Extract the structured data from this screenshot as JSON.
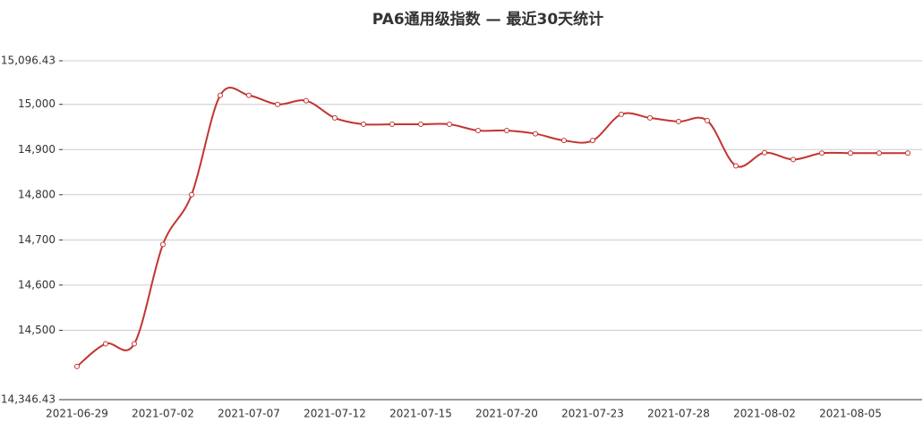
{
  "chart_data": {
    "type": "line",
    "title": "PA6通用级指数   —   最近30天统计",
    "categories": [
      "2021-06-29",
      null,
      null,
      "2021-07-02",
      null,
      null,
      "2021-07-07",
      null,
      null,
      "2021-07-12",
      null,
      null,
      "2021-07-15",
      null,
      null,
      "2021-07-20",
      null,
      null,
      "2021-07-23",
      null,
      null,
      "2021-07-28",
      null,
      null,
      "2021-08-02",
      null,
      null,
      "2021-08-05",
      null,
      null
    ],
    "series": [
      {
        "name": "PA6通用级指数",
        "color": "#c23531",
        "values": [
          14420,
          14470,
          14470,
          14690,
          14800,
          15020,
          15020,
          15000,
          15008,
          14970,
          14956,
          14956,
          14956,
          14956,
          14942,
          14942,
          14935,
          14920,
          14920,
          14978,
          14970,
          14962,
          14964,
          14864,
          14893,
          14878,
          14892,
          14892,
          14892,
          14892
        ]
      }
    ],
    "ylim": [
      14346.43,
      15096.43
    ],
    "yticks": [
      {
        "value": 14346.43,
        "label": "14,346.43"
      },
      {
        "value": 14500,
        "label": "14,500"
      },
      {
        "value": 14600,
        "label": "14,600"
      },
      {
        "value": 14700,
        "label": "14,700"
      },
      {
        "value": 14800,
        "label": "14,800"
      },
      {
        "value": 14900,
        "label": "14,900"
      },
      {
        "value": 15000,
        "label": "15,000"
      },
      {
        "value": 15096.43,
        "label": "15,096.43"
      }
    ],
    "grid": true,
    "smooth": true
  }
}
